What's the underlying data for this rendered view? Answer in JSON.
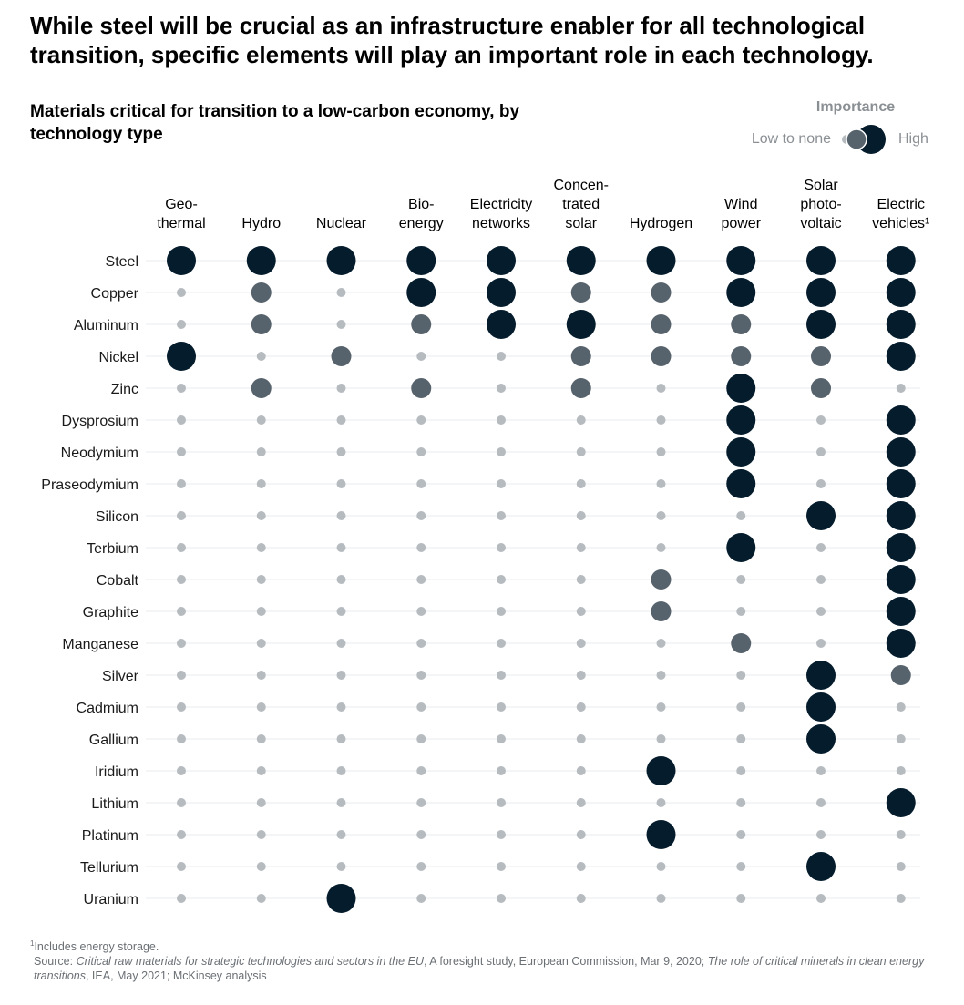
{
  "headline": "While steel will be crucial as an infrastructure enabler for all technological transition, specific elements will play an important role in each technology.",
  "chart_data": {
    "type": "dot-matrix",
    "title": "Materials critical for transition to a low-carbon economy, by technology type",
    "legend": {
      "title": "Importance",
      "low_label": "Low to none",
      "high_label": "High",
      "levels": [
        0,
        1,
        2
      ],
      "placement": "top-right"
    },
    "colors": {
      "0": "#b6bbc0",
      "1": "#56626c",
      "2": "#051c2c",
      "gridline": "#e9ebed"
    },
    "technologies": [
      [
        "Geo-",
        "thermal"
      ],
      [
        "Hydro"
      ],
      [
        "Nuclear"
      ],
      [
        "Bio-",
        "energy"
      ],
      [
        "Electricity",
        "networks"
      ],
      [
        "Concen-",
        "trated",
        "solar"
      ],
      [
        "Hydrogen"
      ],
      [
        "Wind",
        "power"
      ],
      [
        "Solar",
        "photo-",
        "voltaic"
      ],
      [
        "Electric",
        "vehicles¹"
      ]
    ],
    "materials": [
      "Steel",
      "Copper",
      "Aluminum",
      "Nickel",
      "Zinc",
      "Dysprosium",
      "Neodymium",
      "Praseodymium",
      "Silicon",
      "Terbium",
      "Cobalt",
      "Graphite",
      "Manganese",
      "Silver",
      "Cadmium",
      "Gallium",
      "Iridium",
      "Lithium",
      "Platinum",
      "Tellurium",
      "Uranium"
    ],
    "importance": [
      [
        2,
        2,
        2,
        2,
        2,
        2,
        2,
        2,
        2,
        2
      ],
      [
        0,
        1,
        0,
        2,
        2,
        1,
        1,
        2,
        2,
        2
      ],
      [
        0,
        1,
        0,
        1,
        2,
        2,
        1,
        1,
        2,
        2
      ],
      [
        2,
        0,
        1,
        0,
        0,
        1,
        1,
        1,
        1,
        2
      ],
      [
        0,
        1,
        0,
        1,
        0,
        1,
        0,
        2,
        1,
        0
      ],
      [
        0,
        0,
        0,
        0,
        0,
        0,
        0,
        2,
        0,
        2
      ],
      [
        0,
        0,
        0,
        0,
        0,
        0,
        0,
        2,
        0,
        2
      ],
      [
        0,
        0,
        0,
        0,
        0,
        0,
        0,
        2,
        0,
        2
      ],
      [
        0,
        0,
        0,
        0,
        0,
        0,
        0,
        0,
        2,
        2
      ],
      [
        0,
        0,
        0,
        0,
        0,
        0,
        0,
        2,
        0,
        2
      ],
      [
        0,
        0,
        0,
        0,
        0,
        0,
        1,
        0,
        0,
        2
      ],
      [
        0,
        0,
        0,
        0,
        0,
        0,
        1,
        0,
        0,
        2
      ],
      [
        0,
        0,
        0,
        0,
        0,
        0,
        0,
        1,
        0,
        2
      ],
      [
        0,
        0,
        0,
        0,
        0,
        0,
        0,
        0,
        2,
        1
      ],
      [
        0,
        0,
        0,
        0,
        0,
        0,
        0,
        0,
        2,
        0
      ],
      [
        0,
        0,
        0,
        0,
        0,
        0,
        0,
        0,
        2,
        0
      ],
      [
        0,
        0,
        0,
        0,
        0,
        0,
        2,
        0,
        0,
        0
      ],
      [
        0,
        0,
        0,
        0,
        0,
        0,
        0,
        0,
        0,
        2
      ],
      [
        0,
        0,
        0,
        0,
        0,
        0,
        2,
        0,
        0,
        0
      ],
      [
        0,
        0,
        0,
        0,
        0,
        0,
        0,
        0,
        2,
        0
      ],
      [
        0,
        0,
        2,
        0,
        0,
        0,
        0,
        0,
        0,
        0
      ]
    ]
  },
  "footnote": {
    "note": "Includes energy storage.",
    "note_marker": "1",
    "source_prefix": "Source: ",
    "source_title1": "Critical raw materials for strategic technologies and sectors in the EU",
    "source_mid": ", A foresight study, European Commission, Mar 9, 2020; ",
    "source_title2": "The role of critical minerals in clean energy transitions",
    "source_suffix": ", IEA, May 2021; McKinsey analysis"
  }
}
